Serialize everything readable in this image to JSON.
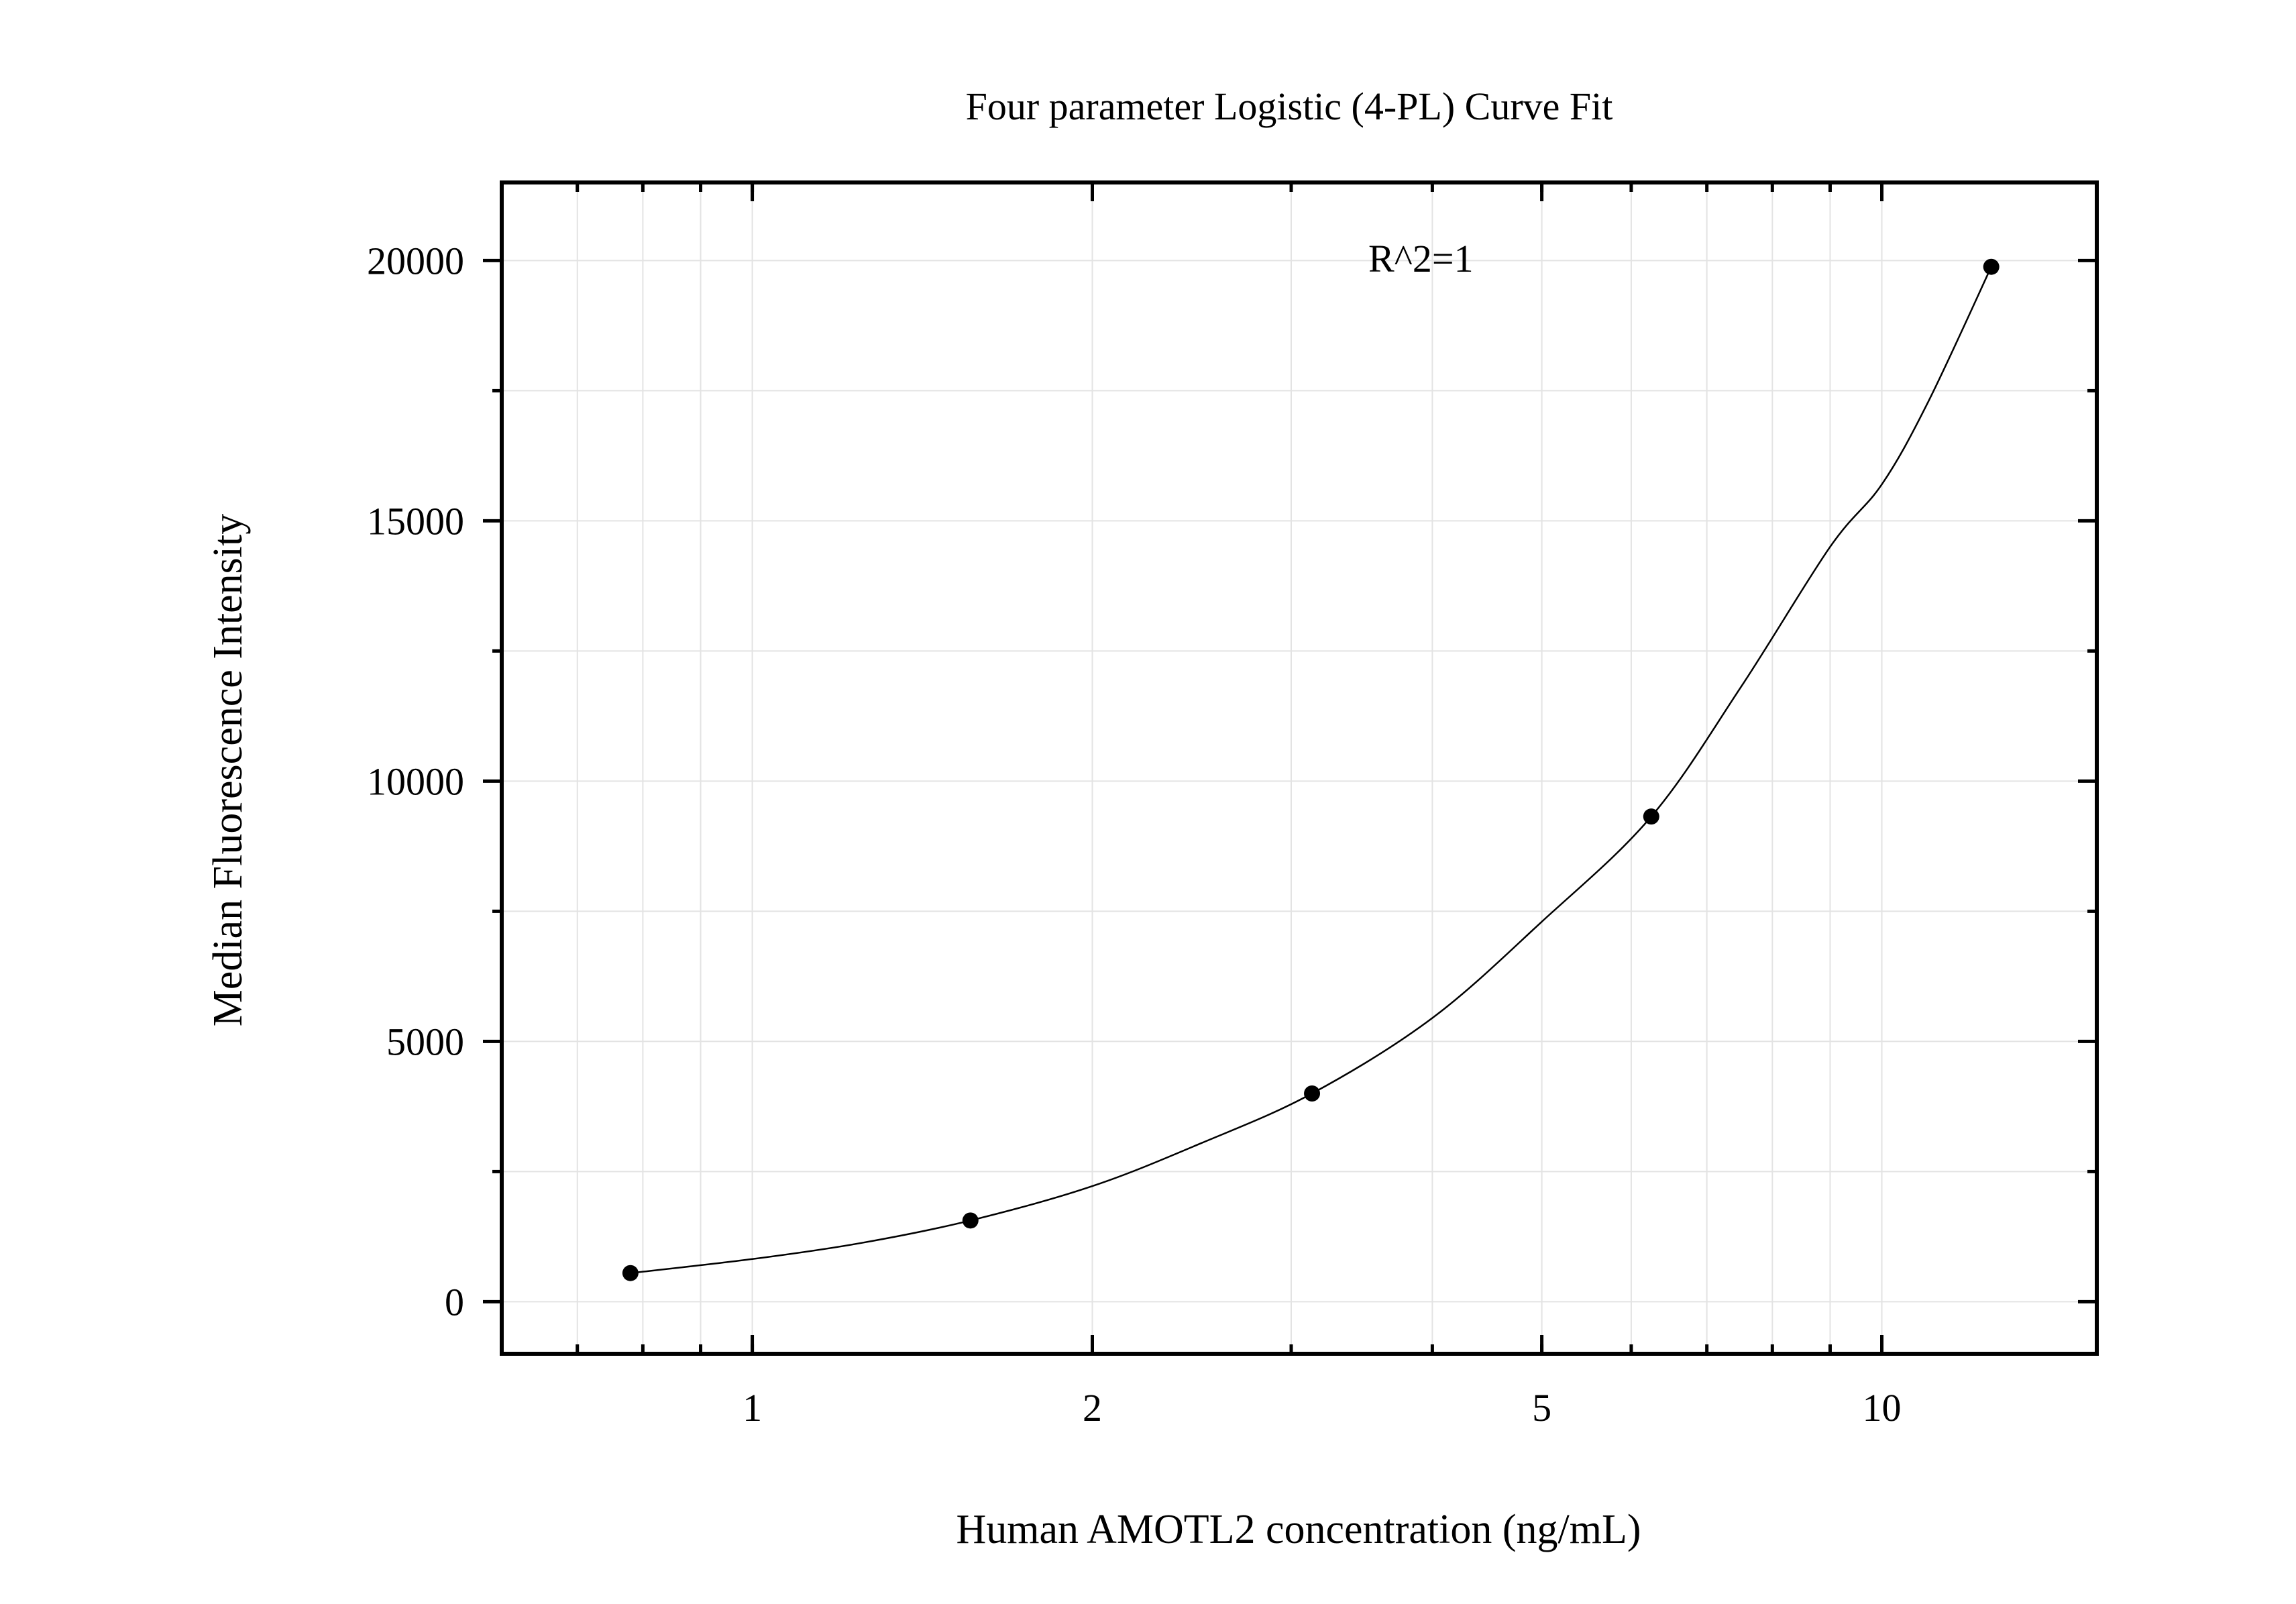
{
  "chart_data": {
    "type": "scatter",
    "title": "Four parameter Logistic (4-PL) Curve Fit",
    "xlabel": "Human AMOTL2 concentration (ng/mL)",
    "ylabel": "Median Fluorescence Intensity",
    "annotation": "R^2=1",
    "x_scale": "log",
    "xlim": [
      0.6,
      15.5
    ],
    "ylim": [
      -1000,
      21500
    ],
    "x_ticks": [
      1,
      2,
      5,
      10
    ],
    "x_tick_labels": [
      "1",
      "2",
      "5",
      "10"
    ],
    "y_ticks": [
      0,
      5000,
      10000,
      15000,
      20000
    ],
    "y_tick_labels": [
      "0",
      "5000",
      "10000",
      "15000",
      "20000"
    ],
    "grid": true,
    "points": [
      {
        "x": 0.78,
        "y": 550
      },
      {
        "x": 1.56,
        "y": 1560
      },
      {
        "x": 3.13,
        "y": 4000
      },
      {
        "x": 6.25,
        "y": 9320
      },
      {
        "x": 12.5,
        "y": 19880
      }
    ],
    "fit_curve": [
      {
        "x": 0.78,
        "y": 550
      },
      {
        "x": 1.0,
        "y": 820
      },
      {
        "x": 1.25,
        "y": 1130
      },
      {
        "x": 1.56,
        "y": 1560
      },
      {
        "x": 2.0,
        "y": 2220
      },
      {
        "x": 2.5,
        "y": 3050
      },
      {
        "x": 3.13,
        "y": 4000
      },
      {
        "x": 4.0,
        "y": 5450
      },
      {
        "x": 5.0,
        "y": 7300
      },
      {
        "x": 6.25,
        "y": 9320
      },
      {
        "x": 7.5,
        "y": 11800
      },
      {
        "x": 9.0,
        "y": 14500
      },
      {
        "x": 10.0,
        "y": 15700
      },
      {
        "x": 11.0,
        "y": 17300
      },
      {
        "x": 12.5,
        "y": 19880
      }
    ]
  }
}
